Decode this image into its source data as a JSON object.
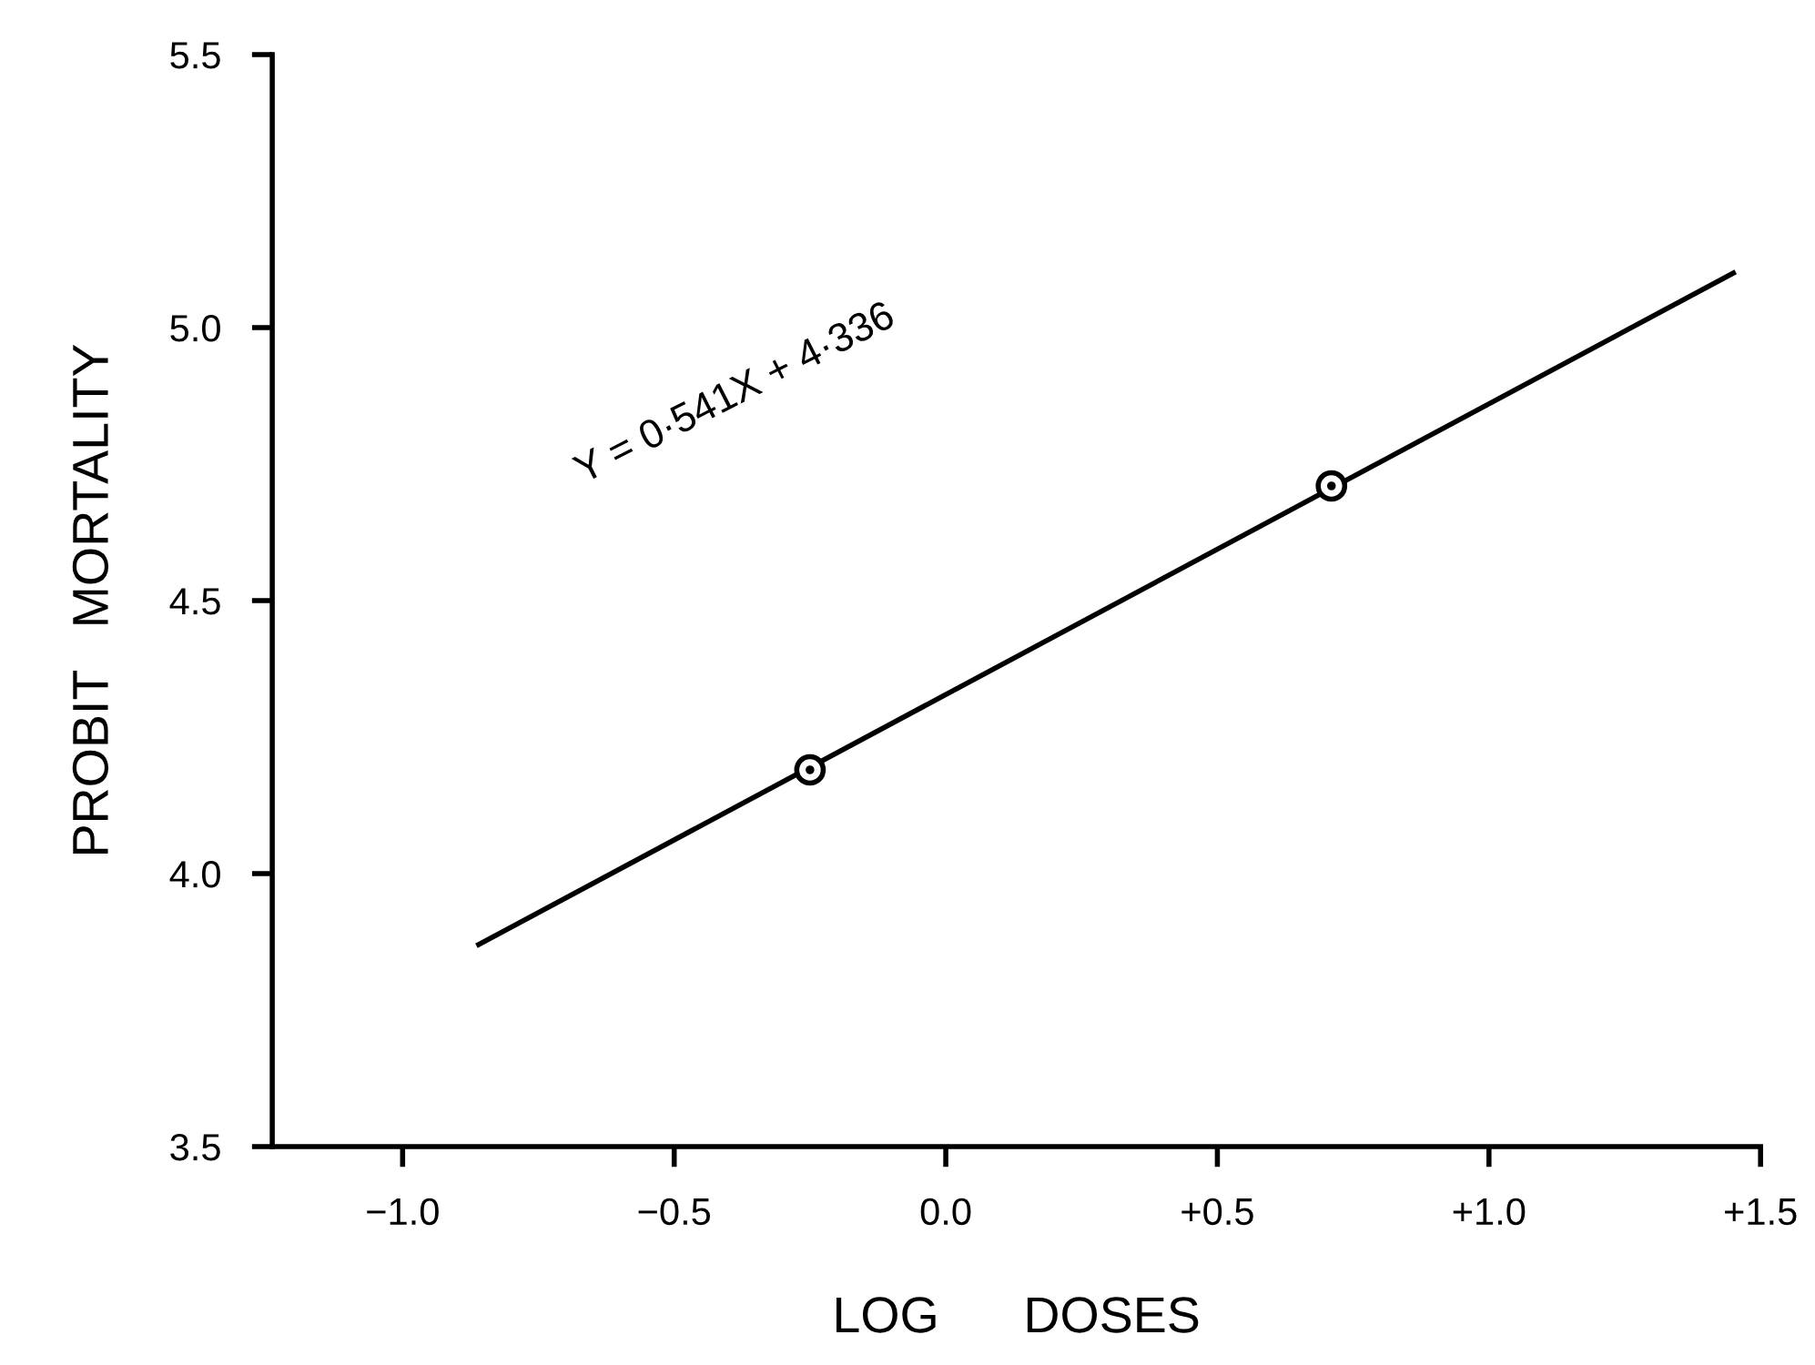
{
  "chart_data": {
    "type": "line",
    "xlabel": "LOG      DOSES",
    "ylabel": "PROBIT   MORTALITY",
    "series": [
      {
        "color": "#000000",
        "x": [
          -0.86,
          1.45
        ],
        "values": [
          3.87,
          5.1
        ],
        "marker": "none"
      },
      {
        "type": "scatter",
        "color": "#000000",
        "x": [
          -0.25,
          0.71
        ],
        "values": [
          4.19,
          4.71
        ],
        "marker": "circle"
      }
    ],
    "annotations": [
      "Y = 0·541X + 4·336"
    ],
    "xlim": [
      -1.24,
      1.5
    ],
    "xticks": [
      {
        "value": -1.0,
        "label": "−1.0"
      },
      {
        "value": -0.5,
        "label": "−0.5"
      },
      {
        "value": 0.0,
        "label": "0.0"
      },
      {
        "value": 0.5,
        "label": "+0.5"
      },
      {
        "value": 1.0,
        "label": "+1.0"
      },
      {
        "value": 1.5,
        "label": "+1.5"
      }
    ],
    "ylim": [
      3.5,
      5.5
    ],
    "yticks": [
      3.5,
      {
        "value": 4,
        "label": "4.0"
      },
      4.5,
      {
        "value": 5,
        "label": "5.0"
      },
      5.5
    ],
    "grid": false,
    "legend": false
  }
}
